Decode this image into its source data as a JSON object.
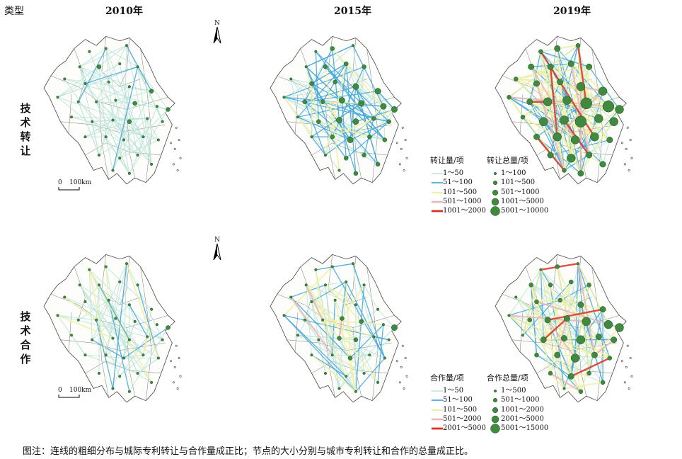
{
  "header": {
    "type_label": "类型",
    "years": [
      "2010年",
      "2015年",
      "2019年"
    ]
  },
  "rows": [
    {
      "label_chars": [
        "技",
        "术",
        "转",
        "让"
      ]
    },
    {
      "label_chars": [
        "技",
        "术",
        "合",
        "作"
      ]
    }
  ],
  "scale_bar": {
    "label_zero": "0",
    "label_dist": "100km"
  },
  "north_arrow": {
    "label": "N",
    "icon": "north-arrow-icon"
  },
  "legend_transfer": {
    "line_title": "转让量/项",
    "line_classes": [
      "1～50",
      "51～100",
      "101～500",
      "501～1000",
      "1001～2000"
    ],
    "node_title": "转让总量/项",
    "node_classes": [
      "1～100",
      "101～500",
      "501～1000",
      "1001～5000",
      "5001～10000"
    ]
  },
  "legend_coop": {
    "line_title": "合作量/项",
    "line_classes": [
      "1～50",
      "51～100",
      "101～500",
      "501～2000",
      "2001～5000"
    ],
    "node_title": "合作总量/项",
    "node_classes": [
      "1～500",
      "501～1000",
      "1001～2000",
      "2001～5000",
      "5001～15000"
    ]
  },
  "colors": {
    "class1": "#b9e3d6",
    "class2": "#41a6d9",
    "class3": "#f0f0a2",
    "class4": "#e8b7b7",
    "class5": "#d93224",
    "node": "#3f8a3f",
    "node_stroke": "#1f4f1f",
    "boundary": "#444444"
  },
  "note": "图注：连线的粗细分布与城际专利转让与合作量成正比；节点的大小分别与城市专利转让和合作的总量成正比。"
}
